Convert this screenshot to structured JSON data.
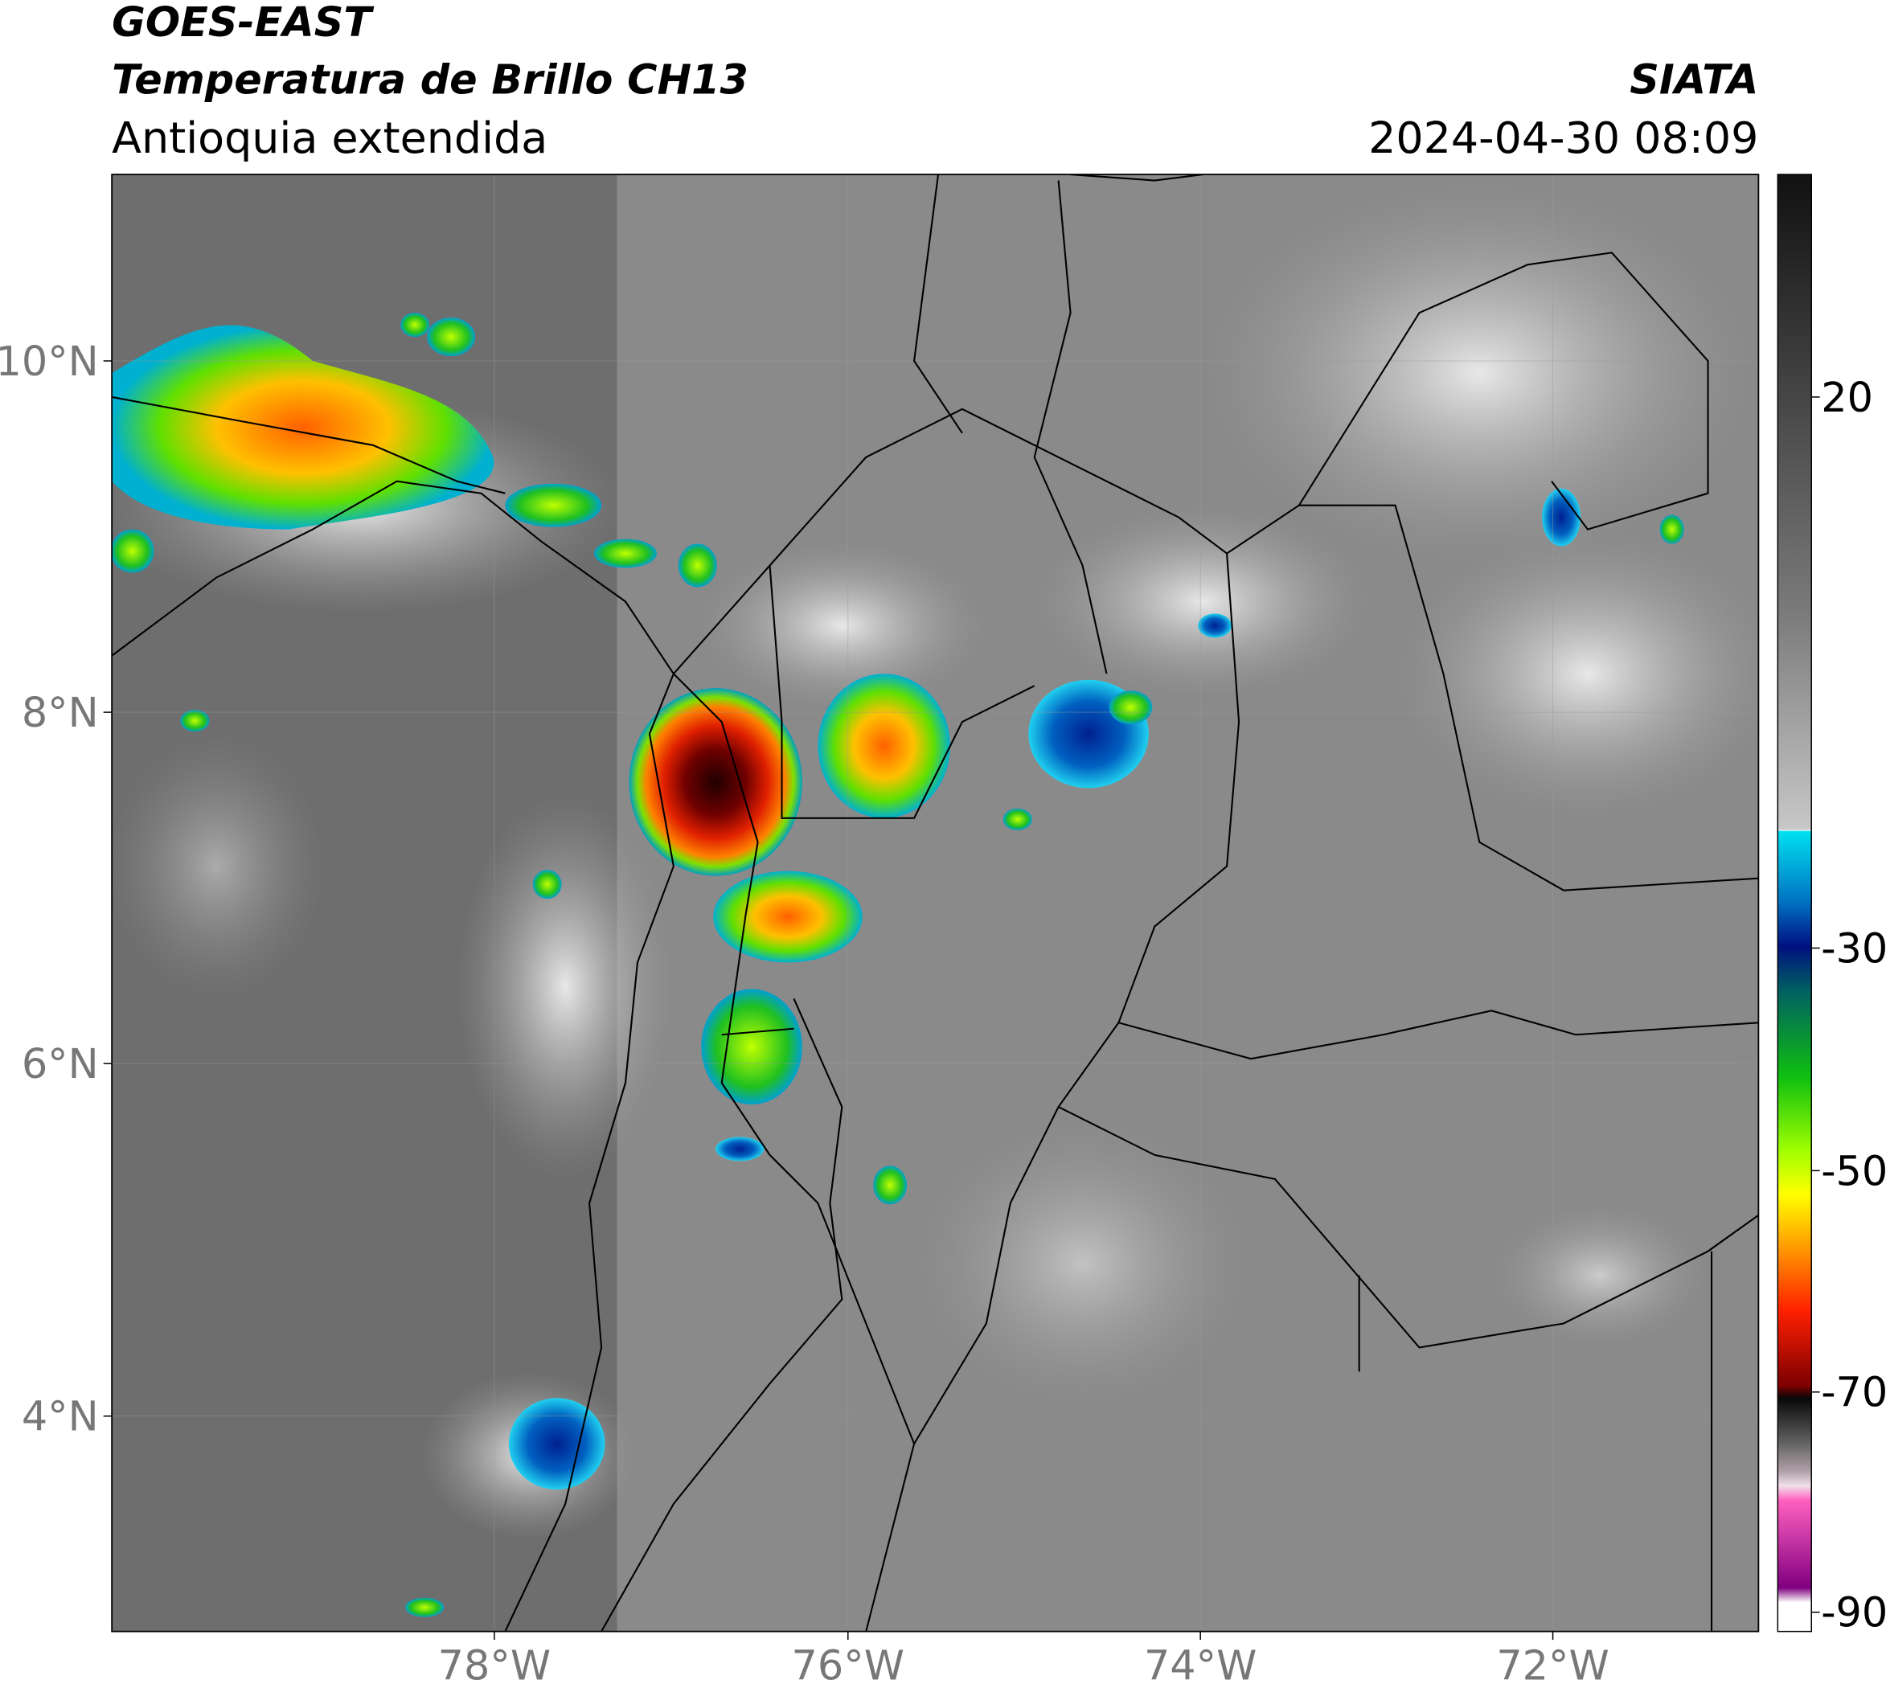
{
  "header": {
    "satellite": "GOES-EAST",
    "product": "Temperatura de Brillo CH13",
    "region": "Antioquia extendida",
    "agency": "SIATA",
    "datetime": "2024-04-30 08:09"
  },
  "map": {
    "lat_labels": [
      "10°N",
      "8°N",
      "6°N",
      "4°N"
    ],
    "lon_labels": [
      "78°W",
      "76°W",
      "74°W",
      "72°W"
    ]
  },
  "colorbar": {
    "ticks": [
      20,
      -30,
      -50,
      -70,
      -90
    ]
  }
}
